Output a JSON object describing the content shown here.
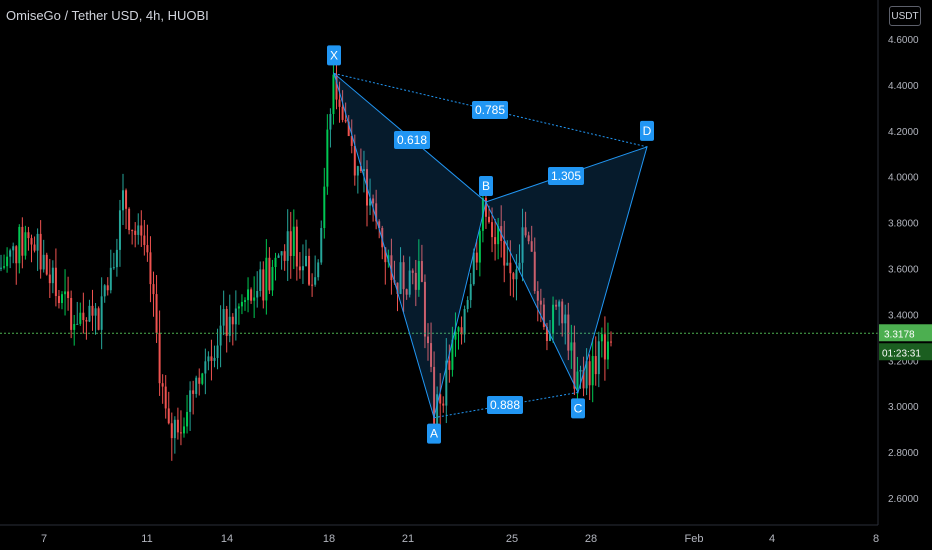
{
  "header": {
    "title": "OmiseGo / Tether USD, 4h, HUOBI",
    "currency_label": "USDT"
  },
  "price_axis": {
    "ticks": [
      "4.6000",
      "4.4000",
      "4.2000",
      "4.0000",
      "3.8000",
      "3.6000",
      "3.4000",
      "3.2000",
      "3.0000",
      "2.8000",
      "2.6000"
    ],
    "last_price": "3.3178",
    "countdown": "01:23:31"
  },
  "time_axis": {
    "ticks": [
      "7",
      "11",
      "14",
      "18",
      "21",
      "25",
      "28",
      "Feb",
      "4",
      "8"
    ]
  },
  "colors": {
    "background": "#000000",
    "up": "#26a69a",
    "up_bright": "#00c853",
    "down": "#ef5350",
    "pattern": "#2196f3",
    "label_bg": "#2196f3",
    "price_line": "#4caf50"
  },
  "chart_data": {
    "type": "candlestick",
    "ylim": [
      2.5,
      4.7
    ],
    "last_price": 3.3178,
    "harmonic_pattern": {
      "points": [
        {
          "label": "X",
          "date": "Jan 18",
          "price": 4.45
        },
        {
          "label": "A",
          "date": "Jan 22",
          "price": 2.95
        },
        {
          "label": "B",
          "date": "Jan 24",
          "price": 3.89
        },
        {
          "label": "C",
          "date": "Jan 27",
          "price": 3.06
        },
        {
          "label": "D",
          "date": "Jan 31",
          "price": 4.13
        }
      ],
      "ratios": [
        {
          "label": "0.618",
          "between": "XA-AB"
        },
        {
          "label": "0.785",
          "between": "XB-XD"
        },
        {
          "label": "0.888",
          "between": "AC"
        },
        {
          "label": "1.305",
          "between": "BD"
        }
      ]
    }
  }
}
